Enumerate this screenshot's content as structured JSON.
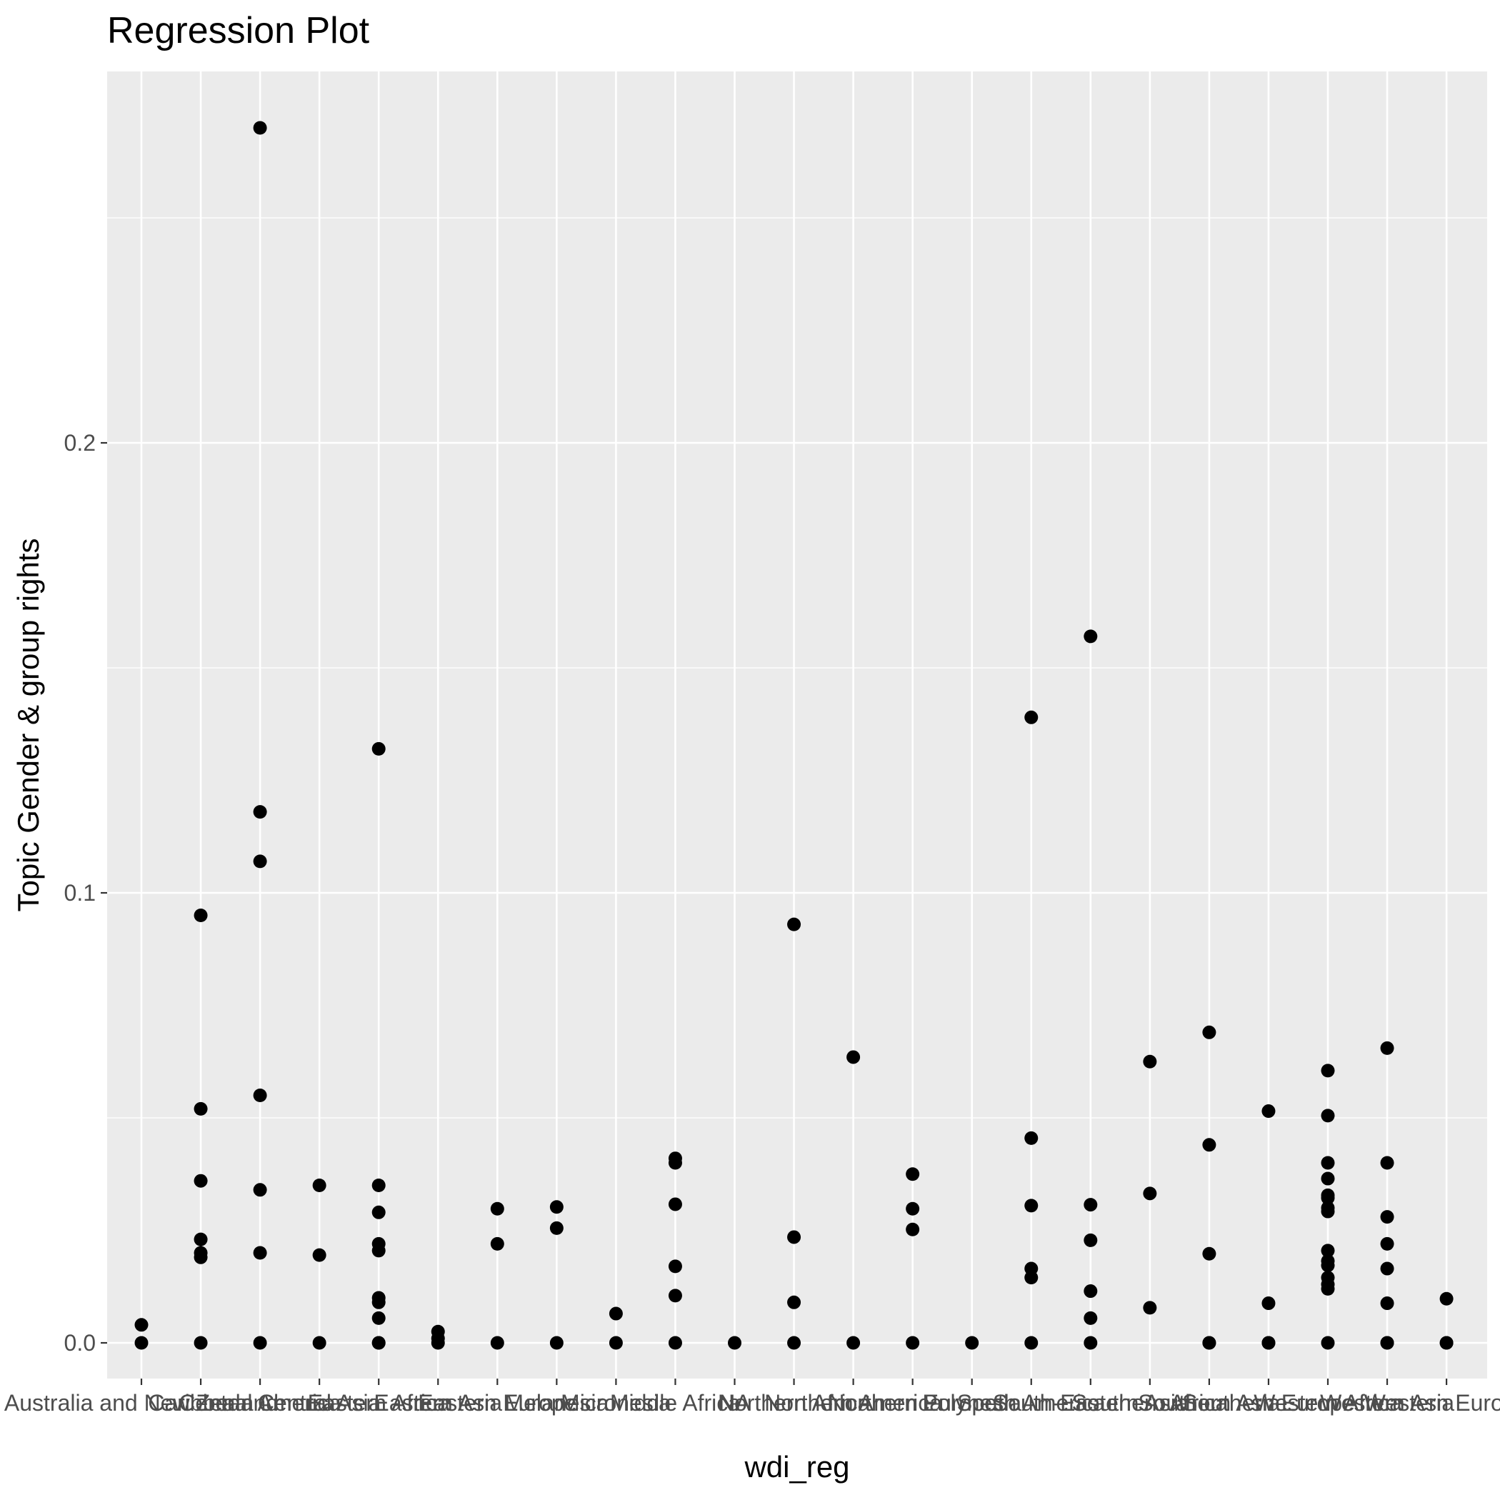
{
  "chart_data": {
    "type": "scatter",
    "title": "Regression Plot",
    "xlabel": "wdi_reg",
    "ylabel": "Topic Gender & group rights",
    "ylim": [
      -0.011,
      0.29
    ],
    "y_ticks": [
      0.0,
      0.1,
      0.2
    ],
    "y_tick_labels": [
      "0.0",
      "0.1",
      "0.2"
    ],
    "grid": true,
    "legend": "none",
    "colors": {
      "panel_background": "#ebebeb",
      "grid_line": "#ffffff",
      "point": "#000000",
      "tick_text": "#4d4d4d",
      "axis_tick": "#333333"
    },
    "categories": [
      "Australia and New Zealand",
      "Caribbean",
      "Central America",
      "Central Asia",
      "Eastern Africa",
      "Eastern Asia",
      "Eastern Europe",
      "Melanesia",
      "Micronesia",
      "Middle Africa",
      "NA",
      "Northern Africa",
      "Northern America",
      "Northern Europe",
      "Polynesia",
      "South America",
      "South-Eastern Asia",
      "Southern Africa",
      "Southern Asia",
      "Southern Europe",
      "Western Africa",
      "Western Asia",
      "Western Europe"
    ],
    "points": [
      {
        "category": "Australia and New Zealand",
        "y": 0.0
      },
      {
        "category": "Australia and New Zealand",
        "y": 0.004
      },
      {
        "category": "Caribbean",
        "y": 0.0
      },
      {
        "category": "Caribbean",
        "y": 0.019
      },
      {
        "category": "Caribbean",
        "y": 0.02
      },
      {
        "category": "Caribbean",
        "y": 0.023
      },
      {
        "category": "Caribbean",
        "y": 0.036
      },
      {
        "category": "Caribbean",
        "y": 0.052
      },
      {
        "category": "Caribbean",
        "y": 0.095
      },
      {
        "category": "Central America",
        "y": 0.0
      },
      {
        "category": "Central America",
        "y": 0.02
      },
      {
        "category": "Central America",
        "y": 0.034
      },
      {
        "category": "Central America",
        "y": 0.055
      },
      {
        "category": "Central America",
        "y": 0.107
      },
      {
        "category": "Central America",
        "y": 0.118
      },
      {
        "category": "Central America",
        "y": 0.27
      },
      {
        "category": "Central Asia",
        "y": 0.0
      },
      {
        "category": "Central Asia",
        "y": 0.0195
      },
      {
        "category": "Central Asia",
        "y": 0.035
      },
      {
        "category": "Eastern Africa",
        "y": 0.0
      },
      {
        "category": "Eastern Africa",
        "y": 0.0
      },
      {
        "category": "Eastern Africa",
        "y": 0.0055
      },
      {
        "category": "Eastern Africa",
        "y": 0.009
      },
      {
        "category": "Eastern Africa",
        "y": 0.01
      },
      {
        "category": "Eastern Africa",
        "y": 0.0205
      },
      {
        "category": "Eastern Africa",
        "y": 0.022
      },
      {
        "category": "Eastern Africa",
        "y": 0.029
      },
      {
        "category": "Eastern Africa",
        "y": 0.035
      },
      {
        "category": "Eastern Africa",
        "y": 0.132
      },
      {
        "category": "Eastern Asia",
        "y": 0.0
      },
      {
        "category": "Eastern Asia",
        "y": 0.001
      },
      {
        "category": "Eastern Asia",
        "y": 0.0025
      },
      {
        "category": "Eastern Europe",
        "y": 0.0
      },
      {
        "category": "Eastern Europe",
        "y": 0.022
      },
      {
        "category": "Eastern Europe",
        "y": 0.0298
      },
      {
        "category": "Melanesia",
        "y": 0.0
      },
      {
        "category": "Melanesia",
        "y": 0.0255
      },
      {
        "category": "Melanesia",
        "y": 0.0302
      },
      {
        "category": "Micronesia",
        "y": 0.0
      },
      {
        "category": "Micronesia",
        "y": 0.0065
      },
      {
        "category": "Middle Africa",
        "y": 0.0
      },
      {
        "category": "Middle Africa",
        "y": 0.0105
      },
      {
        "category": "Middle Africa",
        "y": 0.017
      },
      {
        "category": "Middle Africa",
        "y": 0.0308
      },
      {
        "category": "Middle Africa",
        "y": 0.04
      },
      {
        "category": "Middle Africa",
        "y": 0.041
      },
      {
        "category": "NA",
        "y": 0.0
      },
      {
        "category": "Northern Africa",
        "y": 0.0
      },
      {
        "category": "Northern Africa",
        "y": 0.009
      },
      {
        "category": "Northern Africa",
        "y": 0.0235
      },
      {
        "category": "Northern Africa",
        "y": 0.093
      },
      {
        "category": "Northern America",
        "y": 0.0
      },
      {
        "category": "Northern America",
        "y": 0.0635
      },
      {
        "category": "Northern Europe",
        "y": 0.0
      },
      {
        "category": "Northern Europe",
        "y": 0.0252
      },
      {
        "category": "Northern Europe",
        "y": 0.0298
      },
      {
        "category": "Northern Europe",
        "y": 0.0375
      },
      {
        "category": "Polynesia",
        "y": 0.0
      },
      {
        "category": "South America",
        "y": 0.0
      },
      {
        "category": "South America",
        "y": 0.0145
      },
      {
        "category": "South America",
        "y": 0.0165
      },
      {
        "category": "South America",
        "y": 0.0305
      },
      {
        "category": "South America",
        "y": 0.0455
      },
      {
        "category": "South America",
        "y": 0.139
      },
      {
        "category": "South-Eastern Asia",
        "y": 0.0
      },
      {
        "category": "South-Eastern Asia",
        "y": 0.0055
      },
      {
        "category": "South-Eastern Asia",
        "y": 0.0115
      },
      {
        "category": "South-Eastern Asia",
        "y": 0.0228
      },
      {
        "category": "South-Eastern Asia",
        "y": 0.0307
      },
      {
        "category": "South-Eastern Asia",
        "y": 0.157
      },
      {
        "category": "Southern Africa",
        "y": 0.0078
      },
      {
        "category": "Southern Africa",
        "y": 0.0332
      },
      {
        "category": "Southern Africa",
        "y": 0.0625
      },
      {
        "category": "Southern Asia",
        "y": 0.0
      },
      {
        "category": "Southern Asia",
        "y": 0.0
      },
      {
        "category": "Southern Asia",
        "y": 0.0198
      },
      {
        "category": "Southern Asia",
        "y": 0.044
      },
      {
        "category": "Southern Asia",
        "y": 0.069
      },
      {
        "category": "Southern Europe",
        "y": 0.0
      },
      {
        "category": "Southern Europe",
        "y": 0.0
      },
      {
        "category": "Southern Europe",
        "y": 0.0088
      },
      {
        "category": "Southern Europe",
        "y": 0.0515
      },
      {
        "category": "Western Africa",
        "y": 0.0
      },
      {
        "category": "Western Africa",
        "y": 0.012
      },
      {
        "category": "Western Africa",
        "y": 0.013
      },
      {
        "category": "Western Africa",
        "y": 0.0145
      },
      {
        "category": "Western Africa",
        "y": 0.0172
      },
      {
        "category": "Western Africa",
        "y": 0.0182
      },
      {
        "category": "Western Africa",
        "y": 0.0205
      },
      {
        "category": "Western Africa",
        "y": 0.0292
      },
      {
        "category": "Western Africa",
        "y": 0.03
      },
      {
        "category": "Western Africa",
        "y": 0.0322
      },
      {
        "category": "Western Africa",
        "y": 0.0328
      },
      {
        "category": "Western Africa",
        "y": 0.0365
      },
      {
        "category": "Western Africa",
        "y": 0.04
      },
      {
        "category": "Western Africa",
        "y": 0.0505
      },
      {
        "category": "Western Africa",
        "y": 0.0605
      },
      {
        "category": "Western Asia",
        "y": 0.0
      },
      {
        "category": "Western Asia",
        "y": 0.0
      },
      {
        "category": "Western Asia",
        "y": 0.0088
      },
      {
        "category": "Western Asia",
        "y": 0.0165
      },
      {
        "category": "Western Asia",
        "y": 0.022
      },
      {
        "category": "Western Asia",
        "y": 0.028
      },
      {
        "category": "Western Asia",
        "y": 0.04
      },
      {
        "category": "Western Asia",
        "y": 0.0655
      },
      {
        "category": "Western Europe",
        "y": 0.0
      },
      {
        "category": "Western Europe",
        "y": 0.0
      },
      {
        "category": "Western Europe",
        "y": 0.0098
      }
    ]
  }
}
